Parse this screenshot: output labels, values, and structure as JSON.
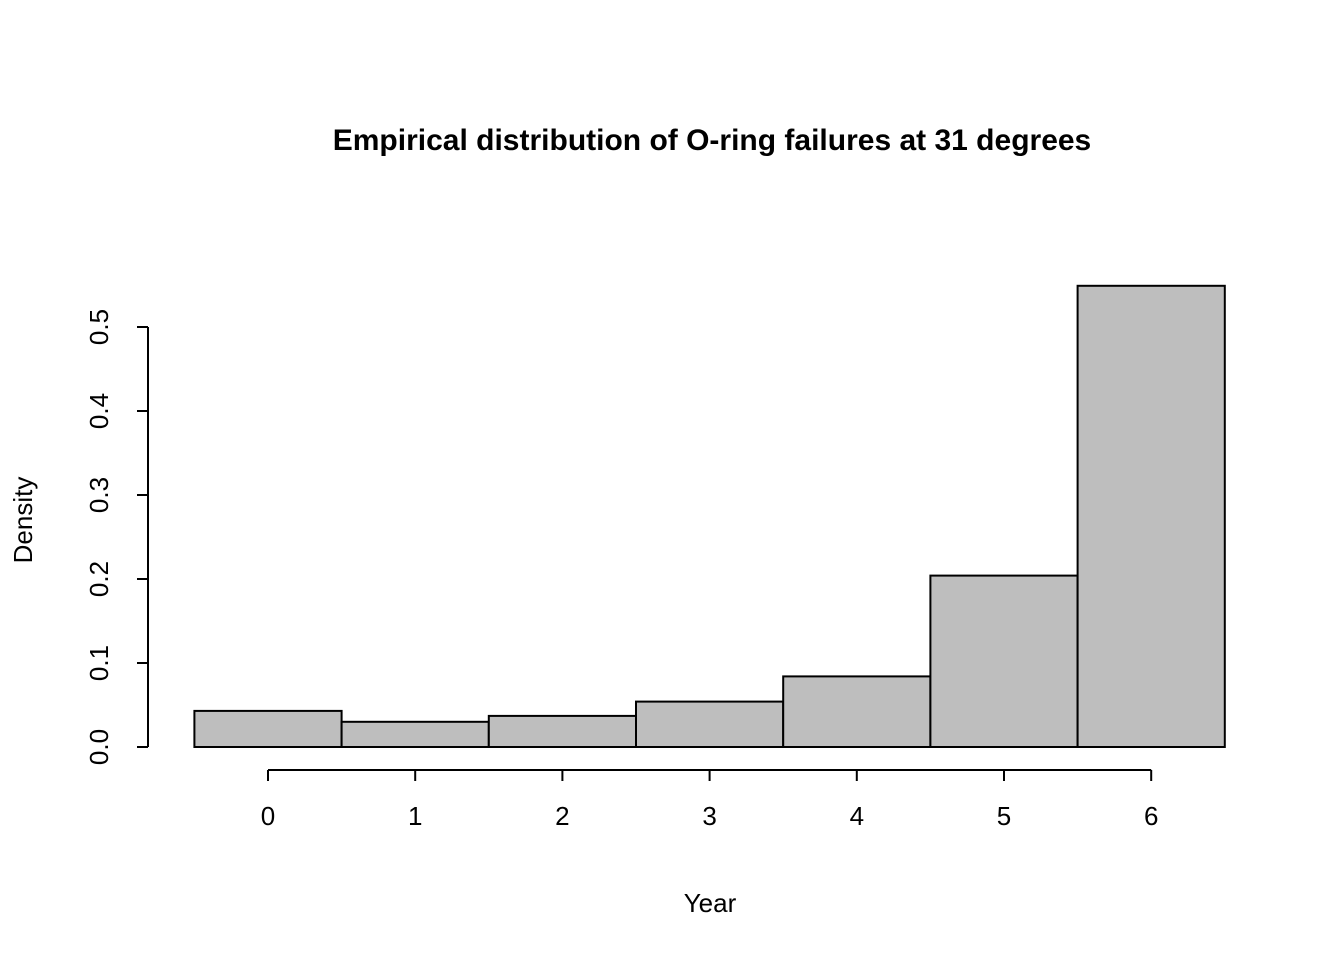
{
  "chart_data": {
    "type": "bar",
    "title": "Empirical distribution of O-ring failures at 31 degrees",
    "xlabel": "Year",
    "ylabel": "Density",
    "categories": [
      0,
      1,
      2,
      3,
      4,
      5,
      6
    ],
    "values": [
      0.043,
      0.03,
      0.037,
      0.054,
      0.084,
      0.204,
      0.549
    ],
    "x_tick_labels": [
      "0",
      "1",
      "2",
      "3",
      "4",
      "5",
      "6"
    ],
    "y_tick_labels": [
      "0.0",
      "0.1",
      "0.2",
      "0.3",
      "0.4",
      "0.5"
    ],
    "y_tick_values": [
      0.0,
      0.1,
      0.2,
      0.3,
      0.4,
      0.5
    ],
    "xlim": [
      -0.5,
      6.5
    ],
    "ylim": [
      0,
      0.55
    ],
    "bar_width": 1,
    "bar_fill": "#bebebe",
    "bar_stroke": "#000000",
    "axis_color": "#000000",
    "grid": false,
    "legend": false
  }
}
